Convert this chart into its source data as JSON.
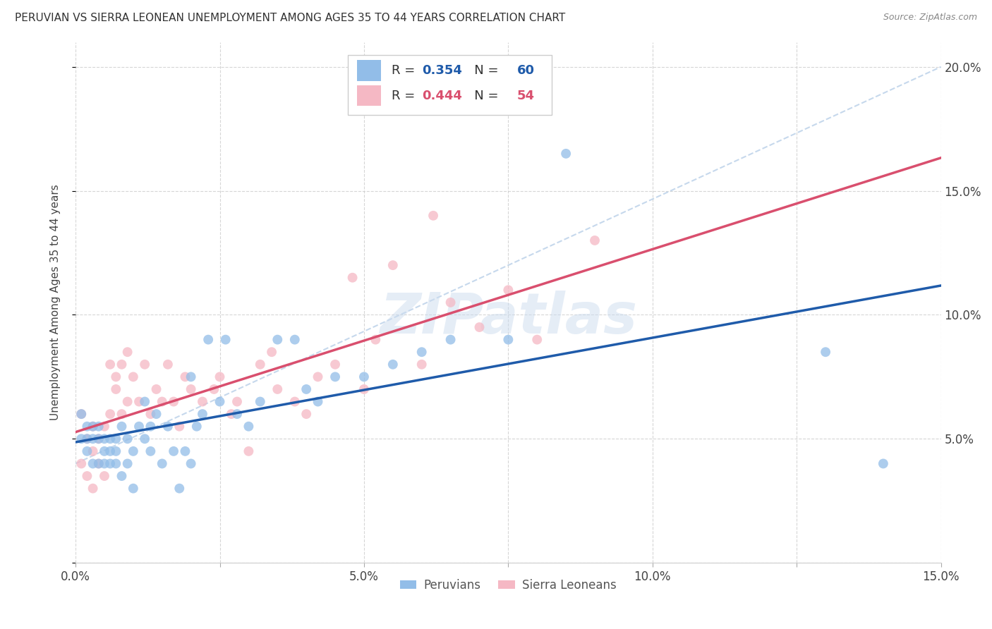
{
  "title": "PERUVIAN VS SIERRA LEONEAN UNEMPLOYMENT AMONG AGES 35 TO 44 YEARS CORRELATION CHART",
  "source": "Source: ZipAtlas.com",
  "ylabel": "Unemployment Among Ages 35 to 44 years",
  "xlim": [
    0.0,
    0.15
  ],
  "ylim": [
    0.0,
    0.21
  ],
  "xticks": [
    0.0,
    0.025,
    0.05,
    0.075,
    0.1,
    0.125,
    0.15
  ],
  "xticklabels": [
    "0.0%",
    "",
    "5.0%",
    "",
    "10.0%",
    "",
    "15.0%"
  ],
  "yticks": [
    0.0,
    0.05,
    0.1,
    0.15,
    0.2
  ],
  "yticklabels": [
    "",
    "5.0%",
    "10.0%",
    "15.0%",
    "20.0%"
  ],
  "peruvians_R": 0.354,
  "peruvians_N": 60,
  "sierra_leoneans_R": 0.444,
  "sierra_leoneans_N": 54,
  "blue_color": "#92bde8",
  "pink_color": "#f5b8c4",
  "blue_line_color": "#1f5baa",
  "pink_line_color": "#d94f6e",
  "blue_dash_color": "#b8cfe8",
  "peruvians_x": [
    0.001,
    0.001,
    0.002,
    0.002,
    0.002,
    0.003,
    0.003,
    0.003,
    0.004,
    0.004,
    0.004,
    0.005,
    0.005,
    0.005,
    0.006,
    0.006,
    0.006,
    0.007,
    0.007,
    0.007,
    0.008,
    0.008,
    0.009,
    0.009,
    0.01,
    0.01,
    0.011,
    0.012,
    0.012,
    0.013,
    0.013,
    0.014,
    0.015,
    0.016,
    0.017,
    0.018,
    0.019,
    0.02,
    0.02,
    0.021,
    0.022,
    0.023,
    0.025,
    0.026,
    0.028,
    0.03,
    0.032,
    0.035,
    0.038,
    0.04,
    0.042,
    0.045,
    0.05,
    0.055,
    0.06,
    0.065,
    0.075,
    0.085,
    0.13,
    0.14
  ],
  "peruvians_y": [
    0.06,
    0.05,
    0.055,
    0.045,
    0.05,
    0.04,
    0.05,
    0.055,
    0.04,
    0.05,
    0.055,
    0.045,
    0.05,
    0.04,
    0.04,
    0.05,
    0.045,
    0.04,
    0.05,
    0.045,
    0.035,
    0.055,
    0.04,
    0.05,
    0.03,
    0.045,
    0.055,
    0.05,
    0.065,
    0.045,
    0.055,
    0.06,
    0.04,
    0.055,
    0.045,
    0.03,
    0.045,
    0.04,
    0.075,
    0.055,
    0.06,
    0.09,
    0.065,
    0.09,
    0.06,
    0.055,
    0.065,
    0.09,
    0.09,
    0.07,
    0.065,
    0.075,
    0.075,
    0.08,
    0.085,
    0.09,
    0.09,
    0.165,
    0.085,
    0.04
  ],
  "sierra_leoneans_x": [
    0.001,
    0.001,
    0.002,
    0.002,
    0.003,
    0.003,
    0.003,
    0.004,
    0.004,
    0.005,
    0.005,
    0.006,
    0.006,
    0.007,
    0.007,
    0.008,
    0.008,
    0.009,
    0.009,
    0.01,
    0.011,
    0.012,
    0.013,
    0.014,
    0.015,
    0.016,
    0.017,
    0.018,
    0.019,
    0.02,
    0.022,
    0.024,
    0.025,
    0.027,
    0.028,
    0.03,
    0.032,
    0.034,
    0.035,
    0.038,
    0.04,
    0.042,
    0.045,
    0.048,
    0.05,
    0.052,
    0.055,
    0.06,
    0.062,
    0.065,
    0.07,
    0.075,
    0.08,
    0.09
  ],
  "sierra_leoneans_y": [
    0.06,
    0.04,
    0.035,
    0.05,
    0.045,
    0.03,
    0.055,
    0.04,
    0.05,
    0.035,
    0.055,
    0.06,
    0.08,
    0.07,
    0.075,
    0.06,
    0.08,
    0.085,
    0.065,
    0.075,
    0.065,
    0.08,
    0.06,
    0.07,
    0.065,
    0.08,
    0.065,
    0.055,
    0.075,
    0.07,
    0.065,
    0.07,
    0.075,
    0.06,
    0.065,
    0.045,
    0.08,
    0.085,
    0.07,
    0.065,
    0.06,
    0.075,
    0.08,
    0.115,
    0.07,
    0.09,
    0.12,
    0.08,
    0.14,
    0.105,
    0.095,
    0.11,
    0.09,
    0.13
  ],
  "watermark_text": "ZIPatlas",
  "background_color": "#ffffff",
  "grid_color": "#cccccc"
}
